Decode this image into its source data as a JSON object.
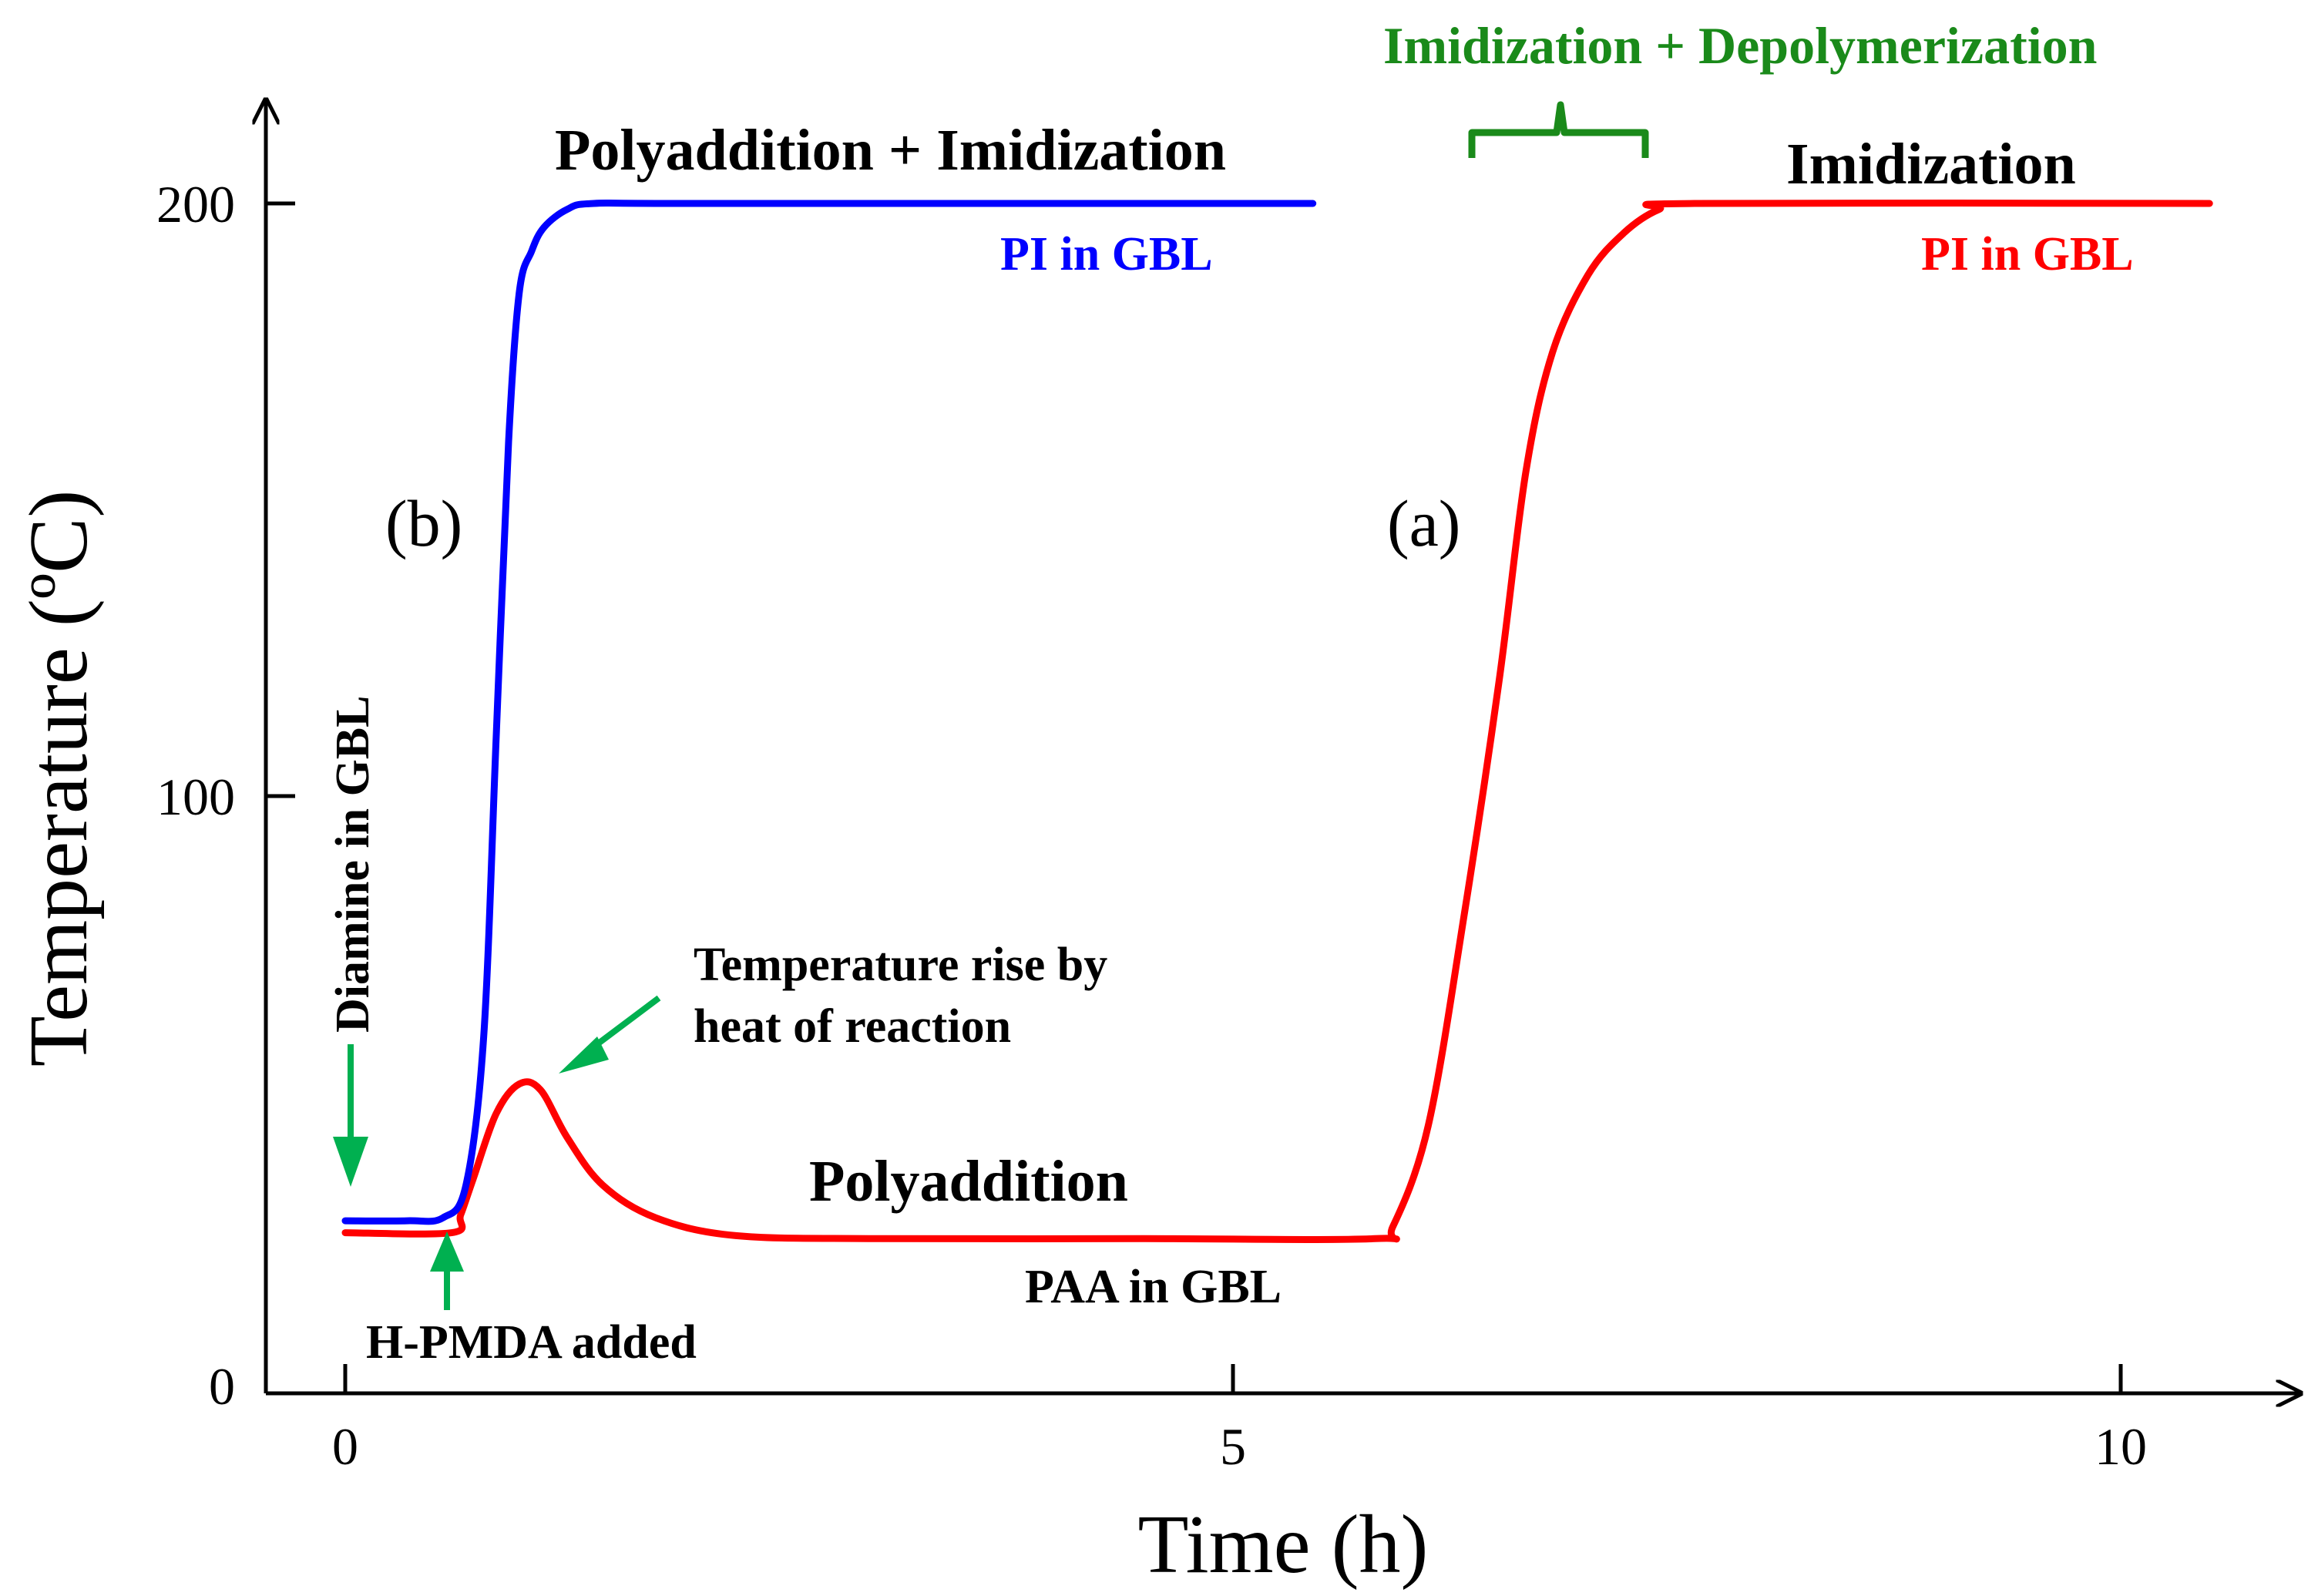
{
  "chart_data": {
    "type": "line",
    "title": "",
    "xlabel": "Time (h)",
    "ylabel": "Temperature (ºC)",
    "xlim": [
      -0.45,
      11.0
    ],
    "ylim": [
      0,
      222
    ],
    "xticks": [
      0,
      5,
      10
    ],
    "yticks": [
      0,
      100,
      200
    ],
    "grid": false,
    "legend": "none",
    "series": [
      {
        "name": "(b)",
        "label": "(b)",
        "color": "#0000ff",
        "points": [
          [
            0,
            29
          ],
          [
            0.35,
            29
          ],
          [
            0.55,
            29.5
          ],
          [
            0.68,
            35
          ],
          [
            0.78,
            60
          ],
          [
            0.85,
            110
          ],
          [
            0.92,
            160
          ],
          [
            0.98,
            185
          ],
          [
            1.05,
            192
          ],
          [
            1.12,
            196
          ],
          [
            1.25,
            199
          ],
          [
            1.4,
            200
          ],
          [
            2.0,
            200
          ],
          [
            5.45,
            200
          ]
        ]
      },
      {
        "name": "(a)",
        "label": "(a)",
        "color": "#ff0000",
        "points": [
          [
            0,
            27
          ],
          [
            0.6,
            27
          ],
          [
            0.65,
            30
          ],
          [
            0.72,
            36
          ],
          [
            0.85,
            47
          ],
          [
            0.98,
            52
          ],
          [
            1.1,
            51
          ],
          [
            1.25,
            43
          ],
          [
            1.45,
            35
          ],
          [
            1.75,
            29.5
          ],
          [
            2.2,
            26.5
          ],
          [
            3.0,
            26
          ],
          [
            4.5,
            26
          ],
          [
            5.8,
            26
          ],
          [
            5.9,
            28
          ],
          [
            6.1,
            45
          ],
          [
            6.3,
            80
          ],
          [
            6.5,
            120
          ],
          [
            6.65,
            155
          ],
          [
            6.8,
            175
          ],
          [
            7.0,
            188
          ],
          [
            7.2,
            195
          ],
          [
            7.4,
            199
          ],
          [
            7.6,
            200
          ],
          [
            10.5,
            200
          ]
        ]
      }
    ],
    "annotations": {
      "polyaddition_imidization": "Polyaddition + Imidization",
      "pi_in_gbl_blue": "PI in GBL",
      "imidization_depolymerization": "Imidization + Depolymerization",
      "imidization": "Imidization",
      "pi_in_gbl_red": "PI in GBL",
      "polyaddition": "Polyaddition",
      "paa_in_gbl": "PAA in GBL",
      "temperature_rise_line1": "Temperature rise by",
      "temperature_rise_line2": "heat of reaction",
      "diamine_in_gbl": "Diamine in GBL",
      "h_pmda_added": "H-PMDA added"
    },
    "colors": {
      "annotation_green": "#1a8a1a",
      "arrow_green": "#00b050",
      "blue_text": "#0000ff",
      "red_text": "#ff0000"
    }
  }
}
